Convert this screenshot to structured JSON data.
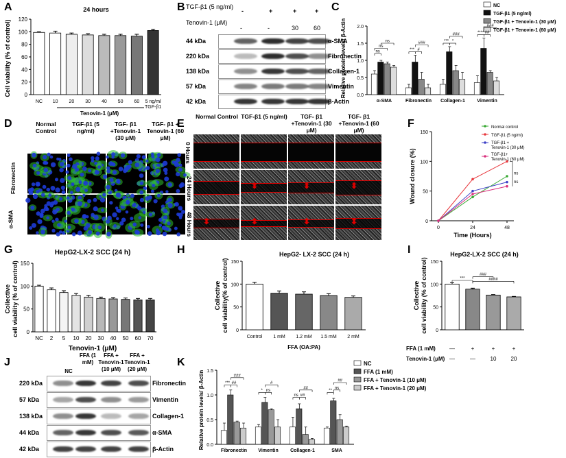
{
  "panels": {
    "A": "A",
    "B": "B",
    "C": "C",
    "D": "D",
    "E": "E",
    "F": "F",
    "G": "G",
    "H": "H",
    "I": "I",
    "J": "J",
    "K": "K"
  },
  "chart_data": [
    {
      "id": "A",
      "type": "bar",
      "title": "24 hours",
      "ylabel": "Cell viability (% of control)",
      "xlabel": "Tenovin-1 (μM)",
      "categories": [
        "NC",
        "10",
        "20",
        "30",
        "40",
        "50",
        "60",
        "5 ng/ml TGF-β1"
      ],
      "values": [
        99,
        98,
        96,
        95,
        94,
        94,
        93,
        102
      ],
      "errors": [
        1,
        3,
        2,
        2,
        2,
        2,
        3,
        2
      ],
      "ylim": [
        0,
        120
      ],
      "yticks": [
        0,
        20,
        40,
        60,
        80,
        100,
        120
      ]
    },
    {
      "id": "C",
      "type": "bar",
      "ylabel": "Relative protein levels/ β-Actin",
      "categories": [
        "α-SMA",
        "Fibronectin",
        "Collagen-1",
        "Vimentin"
      ],
      "series": [
        {
          "name": "NC",
          "values": [
            0.6,
            0.2,
            0.3,
            0.35
          ],
          "errors": [
            0.1,
            0.1,
            0.15,
            0.2
          ]
        },
        {
          "name": "TGF-β1 (5 ng/ml)",
          "values": [
            0.95,
            0.95,
            1.25,
            1.35
          ],
          "errors": [
            0.05,
            0.2,
            0.15,
            0.3
          ]
        },
        {
          "name": "TGF-β1 + Tenovin-1 (30 μM)",
          "values": [
            0.9,
            0.45,
            0.7,
            0.65
          ],
          "errors": [
            0.05,
            0.2,
            0.15,
            0.05
          ]
        },
        {
          "name": "TGF-β1 + Tenovin-1 (60 μM)",
          "values": [
            0.8,
            0.2,
            0.45,
            0.4
          ],
          "errors": [
            0.05,
            0.1,
            0.2,
            0.1
          ]
        }
      ],
      "ylim": [
        0,
        2.0
      ],
      "yticks": [
        0.0,
        0.5,
        1.0,
        1.5,
        2.0
      ]
    },
    {
      "id": "F",
      "type": "line",
      "ylabel": "Wound closure (%)",
      "xlabel": "Time (Hours)",
      "x": [
        0,
        24,
        48
      ],
      "series": [
        {
          "name": "Normal control",
          "values": [
            0,
            40,
            75
          ]
        },
        {
          "name": "TGF-β1 (5 ng/ml)",
          "values": [
            0,
            70,
            100
          ]
        },
        {
          "name": "TGF-β1 + Tenovin-1 (30 μM)",
          "values": [
            0,
            50,
            65
          ]
        },
        {
          "name": "TGF-β1+ Tenovin-1 (60 μM)",
          "values": [
            0,
            45,
            58
          ]
        }
      ],
      "ylim": [
        0,
        150
      ],
      "yticks": [
        0,
        50,
        100,
        150
      ],
      "xticks": [
        0,
        24,
        48
      ]
    },
    {
      "id": "G",
      "type": "bar",
      "title": "HepG2-LX-2 SCC (24 h)",
      "ylabel": "Collective cell viability (% of control)",
      "xlabel": "Tenovin-1 (μM)",
      "categories": [
        "NC",
        "2",
        "5",
        "10",
        "20",
        "30",
        "40",
        "50",
        "60",
        "70"
      ],
      "values": [
        100,
        92,
        86,
        80,
        76,
        73,
        72,
        71,
        70,
        70
      ],
      "errors": [
        2,
        4,
        4,
        4,
        4,
        3,
        3,
        3,
        3,
        3
      ],
      "ylim": [
        0,
        150
      ],
      "yticks": [
        0,
        50,
        100,
        150
      ]
    },
    {
      "id": "H",
      "type": "bar",
      "title": "HepG2- LX-2 SCC (24 h)",
      "ylabel": "Collective cell viability(% of control)",
      "xlabel": "FFA (OA:PA)",
      "categories": [
        "Control",
        "1 mM",
        "1.2 mM",
        "1.5 mM",
        "2 mM"
      ],
      "values": [
        100,
        80,
        78,
        75,
        71
      ],
      "errors": [
        4,
        5,
        5,
        4,
        3
      ],
      "ylim": [
        0,
        150
      ],
      "yticks": [
        0,
        50,
        100,
        150
      ]
    },
    {
      "id": "I",
      "type": "bar",
      "title": "HepG2-LX-2 SCC (24 h)",
      "ylabel": "Collective cell viability (% of control)",
      "categories": [
        "-/-",
        "+/-",
        "+/10",
        "+/20"
      ],
      "values": [
        100,
        89,
        76,
        72
      ],
      "errors": [
        3,
        2,
        1,
        1
      ],
      "ylim": [
        0,
        150
      ],
      "yticks": [
        0,
        50,
        100,
        150
      ],
      "row_labels": [
        "FFA (1 mM)",
        "Tenovin-1 (μM)"
      ],
      "row1": [
        "—",
        "+",
        "+",
        "+"
      ],
      "row2": [
        "—",
        "—",
        "10",
        "20"
      ]
    },
    {
      "id": "K",
      "type": "bar",
      "ylabel": "Relative protein levels/ β-Actin",
      "categories": [
        "Fibronectin",
        "Vimentin",
        "Collagen-1",
        "SMA"
      ],
      "series": [
        {
          "name": "NC",
          "values": [
            0.28,
            0.35,
            0.35,
            0.33
          ],
          "errors": [
            0.15,
            0.05,
            0.2,
            0.02
          ]
        },
        {
          "name": "FFA (1 mM)",
          "values": [
            1.0,
            0.85,
            0.72,
            0.88
          ],
          "errors": [
            0.1,
            0.1,
            0.1,
            0.05
          ]
        },
        {
          "name": "FFA + Tenovin-1 (10 μM)",
          "values": [
            0.45,
            0.7,
            0.2,
            0.5
          ],
          "errors": [
            0.02,
            0.02,
            0.15,
            0.1
          ]
        },
        {
          "name": "FFA + Tenovin-1 (20 μM)",
          "values": [
            0.33,
            0.35,
            0.1,
            0.35
          ],
          "errors": [
            0.1,
            0.15,
            0.02,
            0.02
          ]
        }
      ],
      "ylim": [
        0,
        1.5
      ],
      "yticks": [
        0.0,
        0.5,
        1.0,
        1.5
      ]
    }
  ],
  "blotB": {
    "header1": "TGF-β1 (5 ng/ml)",
    "header2": "Tenovin-1 (μM)",
    "plus_row": [
      "-",
      "+",
      "+",
      "+"
    ],
    "teno_row": [
      "-",
      "-",
      "30",
      "60"
    ],
    "kda": [
      "44 kDa",
      "220 kDa",
      "138 kDa",
      "57 kDa",
      "42 kDa"
    ],
    "proteins": [
      "α-SMA",
      "Fibronectin",
      "Collagen-1",
      "Vimentin",
      "β-Actin"
    ]
  },
  "blotJ": {
    "headers": [
      "NC",
      "FFA (1 mM)",
      "FFA + Tenovin-1 (10 μM)",
      "FFA + Tenovin-1 (20 μM)"
    ],
    "kda": [
      "220 kDa",
      "57 kDa",
      "138 kDa",
      "44 kDa",
      "42 kDa"
    ],
    "proteins": [
      "Fibronectin",
      "Vimentin",
      "Collagen-1",
      "α-SMA",
      "β-Actin"
    ]
  },
  "panelD": {
    "cols": [
      "Normal Control",
      "TGF-β1 (5 ng/ml)",
      "TGF- β1 +Tenovin-1 (30 μM)",
      "TGF- β1 + Tenovin-1 (60 μM)"
    ],
    "rows": [
      "Fibronectin",
      "α-SMA"
    ]
  },
  "panelE": {
    "cols": [
      "Normal Control",
      "TGF-β1 (5 ng/ml)",
      "TGF- β1 +Tenovin-1 (30 μM)",
      "TGF- β1 +Tenovin-1 (60 μM)"
    ],
    "rows": [
      "0 Hours",
      "24 Hours",
      "48 Hours"
    ]
  },
  "colors": {
    "green": "#3aaa35",
    "red": "#e8383d",
    "blue": "#3b3fc6",
    "pink": "#d9307d",
    "nuclei": "#1d3bd6",
    "stain": "#2fbf2f"
  },
  "sig": {
    "ns": "ns",
    "three": "***",
    "four": "****",
    "two": "**",
    "one": "*",
    "h1": "#",
    "h2": "##",
    "h3": "###",
    "h4": "####"
  }
}
